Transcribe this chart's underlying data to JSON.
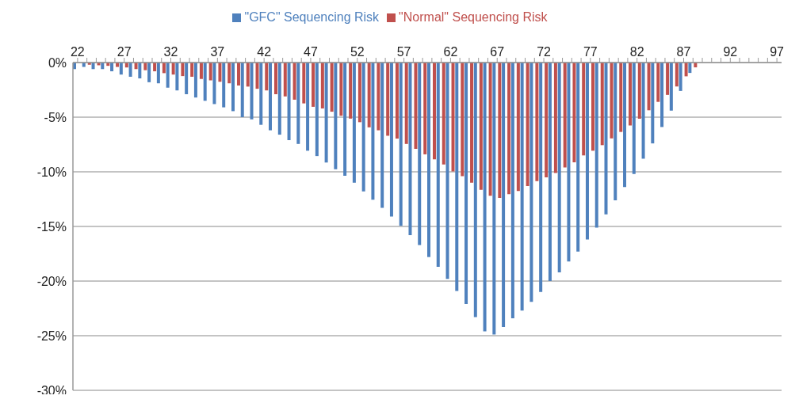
{
  "chart_data": {
    "type": "bar",
    "categories": [
      "22",
      null,
      null,
      null,
      null,
      "27",
      null,
      null,
      null,
      null,
      "32",
      null,
      null,
      null,
      null,
      "37",
      null,
      null,
      null,
      null,
      "42",
      null,
      null,
      null,
      null,
      "47",
      null,
      null,
      null,
      null,
      "52",
      null,
      null,
      null,
      null,
      "57",
      null,
      null,
      null,
      null,
      "62",
      null,
      null,
      null,
      null,
      "67",
      null,
      null,
      null,
      null,
      "72",
      null,
      null,
      null,
      null,
      "77",
      null,
      null,
      null,
      null,
      "82",
      null,
      null,
      null,
      null,
      "87",
      null,
      null,
      null,
      null,
      "92",
      null,
      null,
      null,
      null,
      "97"
    ],
    "series": [
      {
        "name": "\"GFC\" Sequencing Risk",
        "color": "#4f81bd",
        "values": [
          -0.6,
          -0.4,
          -0.6,
          -0.6,
          -0.8,
          -1.1,
          -1.3,
          -1.45,
          -1.8,
          -1.9,
          -2.3,
          -2.55,
          -2.9,
          -3.2,
          -3.5,
          -3.8,
          -4.1,
          -4.45,
          -5.0,
          -5.2,
          -5.7,
          -6.2,
          -6.6,
          -7.1,
          -7.45,
          -8.07,
          -8.56,
          -9.15,
          -9.77,
          -10.36,
          -11.0,
          -11.8,
          -12.55,
          -13.3,
          -14.1,
          -14.95,
          -15.8,
          -16.7,
          -17.8,
          -18.7,
          -19.8,
          -20.9,
          -22.1,
          -23.3,
          -24.6,
          -24.9,
          -24.2,
          -23.4,
          -22.7,
          -21.9,
          -21.0,
          -20.0,
          -19.2,
          -18.2,
          -17.3,
          -16.2,
          -15.1,
          -13.9,
          -12.6,
          -11.4,
          -10.2,
          -8.8,
          -7.4,
          -5.9,
          -4.4,
          -2.6,
          -0.95,
          null,
          null,
          null,
          null,
          null,
          null,
          null,
          null,
          null
        ]
      },
      {
        "name": "\"Normal\" Sequencing Risk",
        "color": "#c0504d",
        "values": [
          null,
          -0.2,
          -0.25,
          -0.3,
          -0.4,
          -0.45,
          -0.6,
          -0.7,
          -0.8,
          -0.97,
          -1.1,
          -1.24,
          -1.3,
          -1.5,
          -1.63,
          -1.76,
          -1.9,
          -2.1,
          -2.2,
          -2.4,
          -2.55,
          -2.9,
          -3.1,
          -3.4,
          -3.74,
          -4.05,
          -4.2,
          -4.5,
          -4.87,
          -5.13,
          -5.46,
          -5.93,
          -6.2,
          -6.7,
          -6.96,
          -7.45,
          -7.9,
          -8.4,
          -8.86,
          -9.33,
          -9.97,
          -10.4,
          -11.0,
          -11.65,
          -12.2,
          -12.4,
          -12.05,
          -11.75,
          -11.3,
          -10.85,
          -10.5,
          -10.1,
          -9.6,
          -9.13,
          -8.5,
          -8.07,
          -7.56,
          -6.94,
          -6.35,
          -5.76,
          -5.14,
          -4.37,
          -3.6,
          -2.96,
          -2.19,
          -1.26,
          -0.44,
          null,
          null,
          null,
          null,
          null,
          null,
          null,
          null,
          null
        ]
      }
    ],
    "ylim": [
      -30,
      0
    ],
    "yticks": [
      {
        "value": 0,
        "label": "0%"
      },
      {
        "value": -5,
        "label": "-5%"
      },
      {
        "value": -10,
        "label": "-10%"
      },
      {
        "value": -15,
        "label": "-15%"
      },
      {
        "value": -20,
        "label": "-20%"
      },
      {
        "value": -25,
        "label": "-25%"
      },
      {
        "value": -30,
        "label": "-30%"
      }
    ],
    "grid": "y",
    "legend": "top"
  }
}
